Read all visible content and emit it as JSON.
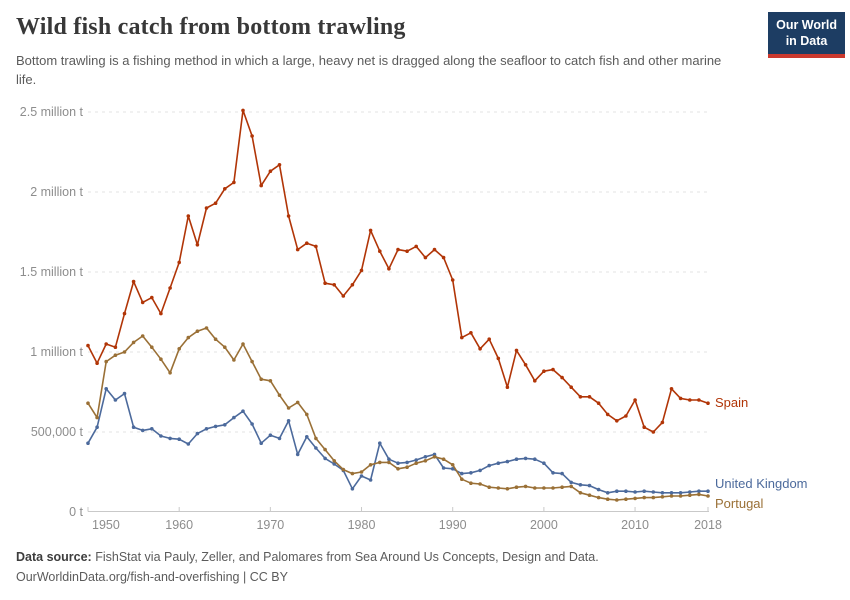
{
  "header": {
    "title": "Wild fish catch from bottom trawling",
    "subtitle": "Bottom trawling is a fishing method in which a large, heavy net is dragged along the seafloor to catch fish and other marine life.",
    "logo": {
      "line1": "Our World",
      "line2": "in Data",
      "bg_color": "#1d3d63",
      "accent_color": "#cb392e"
    }
  },
  "footer": {
    "source_label": "Data source:",
    "source_text": "FishStat via Pauly, Zeller, and Palomares from Sea Around Us Concepts, Design and Data.",
    "url": "OurWorldinData.org/fish-and-overfishing",
    "separator": "|",
    "license": "CC BY"
  },
  "chart_data": {
    "type": "line",
    "unit": "million tonnes",
    "grid": "dashed-horizontal",
    "legend_position": "line-end-labels",
    "xlim": [
      1950,
      2018
    ],
    "ylim": [
      0,
      2.5
    ],
    "x_ticks": [
      1950,
      1960,
      1970,
      1980,
      1990,
      2000,
      2010,
      2018
    ],
    "y_ticks": [
      {
        "value": 0,
        "label": "0 t"
      },
      {
        "value": 0.5,
        "label": "500,000 t"
      },
      {
        "value": 1,
        "label": "1 million t"
      },
      {
        "value": 1.5,
        "label": "1.5 million t"
      },
      {
        "value": 2,
        "label": "2 million t"
      },
      {
        "value": 2.5,
        "label": "2.5 million t"
      }
    ],
    "x": [
      1950,
      1951,
      1952,
      1953,
      1954,
      1955,
      1956,
      1957,
      1958,
      1959,
      1960,
      1961,
      1962,
      1963,
      1964,
      1965,
      1966,
      1967,
      1968,
      1969,
      1970,
      1971,
      1972,
      1973,
      1974,
      1975,
      1976,
      1977,
      1978,
      1979,
      1980,
      1981,
      1982,
      1983,
      1984,
      1985,
      1986,
      1987,
      1988,
      1989,
      1990,
      1991,
      1992,
      1993,
      1994,
      1995,
      1996,
      1997,
      1998,
      1999,
      2000,
      2001,
      2002,
      2003,
      2004,
      2005,
      2006,
      2007,
      2008,
      2009,
      2010,
      2011,
      2012,
      2013,
      2014,
      2015,
      2016,
      2017,
      2018
    ],
    "series": [
      {
        "name": "Spain",
        "color": "#b13507",
        "label_dy": 0,
        "values": [
          1.04,
          0.93,
          1.05,
          1.03,
          1.24,
          1.44,
          1.31,
          1.34,
          1.24,
          1.4,
          1.56,
          1.85,
          1.67,
          1.9,
          1.93,
          2.02,
          2.06,
          2.51,
          2.35,
          2.04,
          2.13,
          2.17,
          1.85,
          1.64,
          1.68,
          1.66,
          1.43,
          1.42,
          1.35,
          1.42,
          1.51,
          1.76,
          1.63,
          1.52,
          1.64,
          1.63,
          1.66,
          1.59,
          1.64,
          1.59,
          1.45,
          1.09,
          1.12,
          1.02,
          1.08,
          0.96,
          0.78,
          1.01,
          0.92,
          0.82,
          0.88,
          0.89,
          0.84,
          0.78,
          0.72,
          0.72,
          0.68,
          0.61,
          0.57,
          0.6,
          0.7,
          0.53,
          0.5,
          0.56,
          0.77,
          0.71,
          0.7,
          0.7,
          0.68
        ]
      },
      {
        "name": "United Kingdom",
        "color": "#4c6a9c",
        "label_dy": -7,
        "values": [
          0.43,
          0.53,
          0.77,
          0.7,
          0.74,
          0.53,
          0.51,
          0.52,
          0.475,
          0.46,
          0.455,
          0.425,
          0.49,
          0.52,
          0.535,
          0.545,
          0.59,
          0.63,
          0.55,
          0.43,
          0.48,
          0.46,
          0.57,
          0.36,
          0.47,
          0.4,
          0.335,
          0.3,
          0.26,
          0.145,
          0.225,
          0.2,
          0.43,
          0.33,
          0.305,
          0.31,
          0.325,
          0.345,
          0.36,
          0.275,
          0.27,
          0.24,
          0.245,
          0.26,
          0.29,
          0.305,
          0.315,
          0.33,
          0.335,
          0.33,
          0.305,
          0.245,
          0.24,
          0.185,
          0.17,
          0.165,
          0.14,
          0.12,
          0.13,
          0.13,
          0.125,
          0.13,
          0.125,
          0.12,
          0.12,
          0.12,
          0.125,
          0.13,
          0.13
        ]
      },
      {
        "name": "Portugal",
        "color": "#9a7036",
        "label_dy": 8,
        "values": [
          0.68,
          0.59,
          0.94,
          0.98,
          1.0,
          1.06,
          1.1,
          1.03,
          0.955,
          0.87,
          1.02,
          1.09,
          1.13,
          1.15,
          1.08,
          1.03,
          0.95,
          1.05,
          0.94,
          0.83,
          0.82,
          0.73,
          0.65,
          0.685,
          0.61,
          0.46,
          0.39,
          0.32,
          0.265,
          0.24,
          0.25,
          0.295,
          0.31,
          0.31,
          0.27,
          0.28,
          0.305,
          0.32,
          0.345,
          0.33,
          0.295,
          0.205,
          0.18,
          0.175,
          0.155,
          0.15,
          0.145,
          0.155,
          0.16,
          0.15,
          0.15,
          0.15,
          0.155,
          0.16,
          0.12,
          0.105,
          0.09,
          0.08,
          0.075,
          0.08,
          0.085,
          0.09,
          0.09,
          0.095,
          0.1,
          0.1,
          0.105,
          0.11,
          0.1
        ]
      }
    ],
    "style": {
      "grid_color": "#e3e3e3",
      "axis_color": "#c9c9c9",
      "tick_label_color": "#8d8d8d"
    }
  }
}
